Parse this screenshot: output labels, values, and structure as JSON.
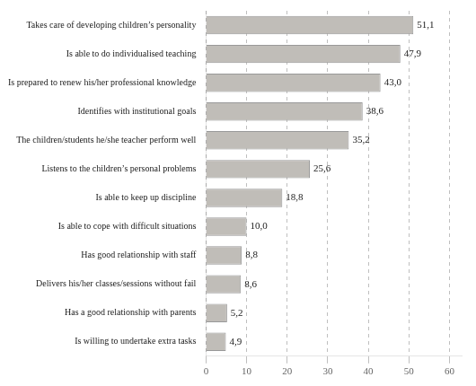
{
  "chart_data": {
    "type": "bar",
    "orientation": "horizontal",
    "categories": [
      "Is willing to undertake extra tasks",
      "Has a good relationship with parents",
      "Delivers his/her classes/sessions without fail",
      "Has good relationship with staff",
      "Is able to cope with difficult situations",
      "Is able to keep up discipline",
      "Listens to the children’s personal problems",
      "The children/students he/she teacher perform well",
      "Identifies with institutional goals",
      "Is prepared to renew his/her professional knowledge",
      "Is able to do individualised teaching",
      "Takes care of developing children’s personality"
    ],
    "values": [
      4.9,
      5.2,
      8.6,
      8.8,
      10.0,
      18.8,
      25.6,
      35.2,
      38.6,
      43.0,
      47.9,
      51.1
    ],
    "value_labels": [
      "4,9",
      "5,2",
      "8,6",
      "8,8",
      "10,0",
      "18,8",
      "25,6",
      "35,2",
      "38,6",
      "43,0",
      "47,9",
      "51,1"
    ],
    "data_labels": true,
    "color": "#c0bdb8",
    "xlim": [
      0,
      63
    ],
    "xticks": [
      0,
      10,
      20,
      30,
      40,
      50,
      60
    ],
    "grid": true
  }
}
